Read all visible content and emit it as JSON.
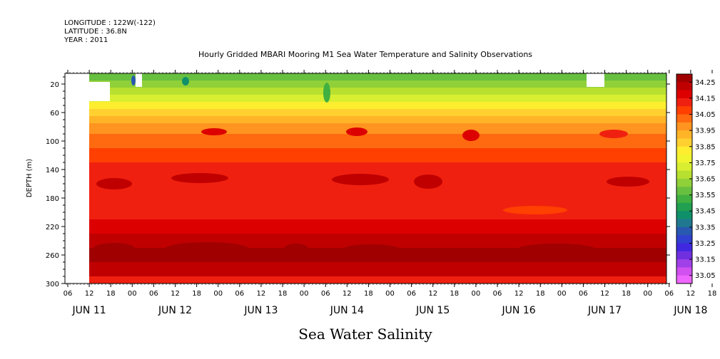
{
  "header": {
    "longitude": "LONGITUDE : 122W(-122)",
    "latitude": "LATITUDE : 36.8N",
    "year": "YEAR : 2011"
  },
  "chart_data": {
    "type": "heatmap",
    "title": "Hourly Gridded MBARI Mooring M1 Sea Water Temperature and Salinity Observations",
    "caption": "Sea Water Salinity",
    "ylabel": "DEPTH (m)",
    "y_ticks": [
      20,
      60,
      100,
      140,
      180,
      220,
      260,
      300
    ],
    "ylim": [
      300,
      5
    ],
    "x_hour_labels": [
      "06",
      "12",
      "18",
      "00",
      "06",
      "12",
      "18",
      "00",
      "06",
      "12",
      "18",
      "00",
      "06",
      "12",
      "18",
      "00",
      "06",
      "12",
      "18",
      "00",
      "06",
      "12",
      "18",
      "00",
      "06",
      "12",
      "18",
      "00",
      "06",
      "12",
      "18",
      "00"
    ],
    "x_day_labels": [
      "JUN 11",
      "JUN 12",
      "JUN 13",
      "JUN 14",
      "JUN 15",
      "JUN 16",
      "JUN 17",
      "JUN 18"
    ],
    "colorbar_labels": [
      "34.25",
      "34.15",
      "34.05",
      "33.95",
      "33.85",
      "33.75",
      "33.65",
      "33.55",
      "33.45",
      "33.35",
      "33.25",
      "33.15",
      "33.05"
    ],
    "colorbar_colors": [
      "#a00000",
      "#c00000",
      "#dd0000",
      "#f02010",
      "#ff4000",
      "#ff6a10",
      "#ff9420",
      "#ffb428",
      "#ffd030",
      "#ffee30",
      "#f0f530",
      "#d8ee30",
      "#b8e030",
      "#90d038",
      "#68c040",
      "#40b040",
      "#20a050",
      "#10906a",
      "#207890",
      "#2858b0",
      "#3040d0",
      "#4028e0",
      "#7030e0",
      "#a040e8",
      "#d050f0",
      "#ee66ff"
    ],
    "profile": [
      {
        "depth": 10,
        "salinity": 33.58
      },
      {
        "depth": 20,
        "salinity": 33.64
      },
      {
        "depth": 30,
        "salinity": 33.7
      },
      {
        "depth": 40,
        "salinity": 33.77
      },
      {
        "depth": 50,
        "salinity": 33.83
      },
      {
        "depth": 60,
        "salinity": 33.89
      },
      {
        "depth": 70,
        "salinity": 33.94
      },
      {
        "depth": 80,
        "salinity": 33.98
      },
      {
        "depth": 100,
        "salinity": 34.02
      },
      {
        "depth": 120,
        "salinity": 34.07
      },
      {
        "depth": 140,
        "salinity": 34.11
      },
      {
        "depth": 160,
        "salinity": 34.13
      },
      {
        "depth": 180,
        "salinity": 34.12
      },
      {
        "depth": 200,
        "salinity": 34.14
      },
      {
        "depth": 220,
        "salinity": 34.18
      },
      {
        "depth": 240,
        "salinity": 34.24
      },
      {
        "depth": 260,
        "salinity": 34.28
      },
      {
        "depth": 280,
        "salinity": 34.22
      },
      {
        "depth": 300,
        "salinity": 34.14
      }
    ]
  }
}
